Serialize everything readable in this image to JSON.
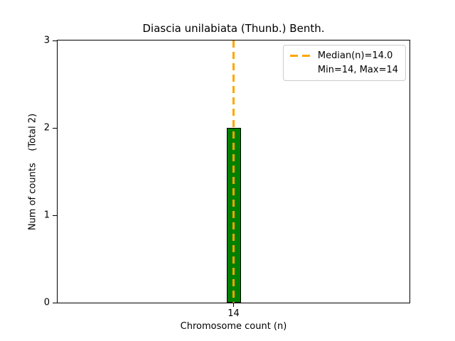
{
  "chart_data": {
    "type": "bar",
    "title": "Diascia unilabiata (Thunb.) Benth.",
    "xlabel": "Chromosome count (n)",
    "ylabel": "Num of counts    (Total 2)",
    "categories": [
      "14"
    ],
    "values": [
      2
    ],
    "total_counts": 2,
    "ylim": [
      0,
      3
    ],
    "yticks": [
      "0",
      "1",
      "2",
      "3"
    ],
    "grid": false,
    "bar_color": "#008000",
    "bar_edge_color": "#000000",
    "median_line": {
      "value": 14.0,
      "color": "#ffa500",
      "style": "dashed"
    },
    "stats": {
      "median": "14.0",
      "min": "14",
      "max": "14"
    },
    "legend": {
      "position": "upper-right",
      "entries": [
        {
          "label": "Median(n)=14.0",
          "handle": "orange-dashed-line"
        },
        {
          "label": "Min=14, Max=14",
          "handle": "none"
        }
      ]
    },
    "background_color": "#ffffff"
  }
}
